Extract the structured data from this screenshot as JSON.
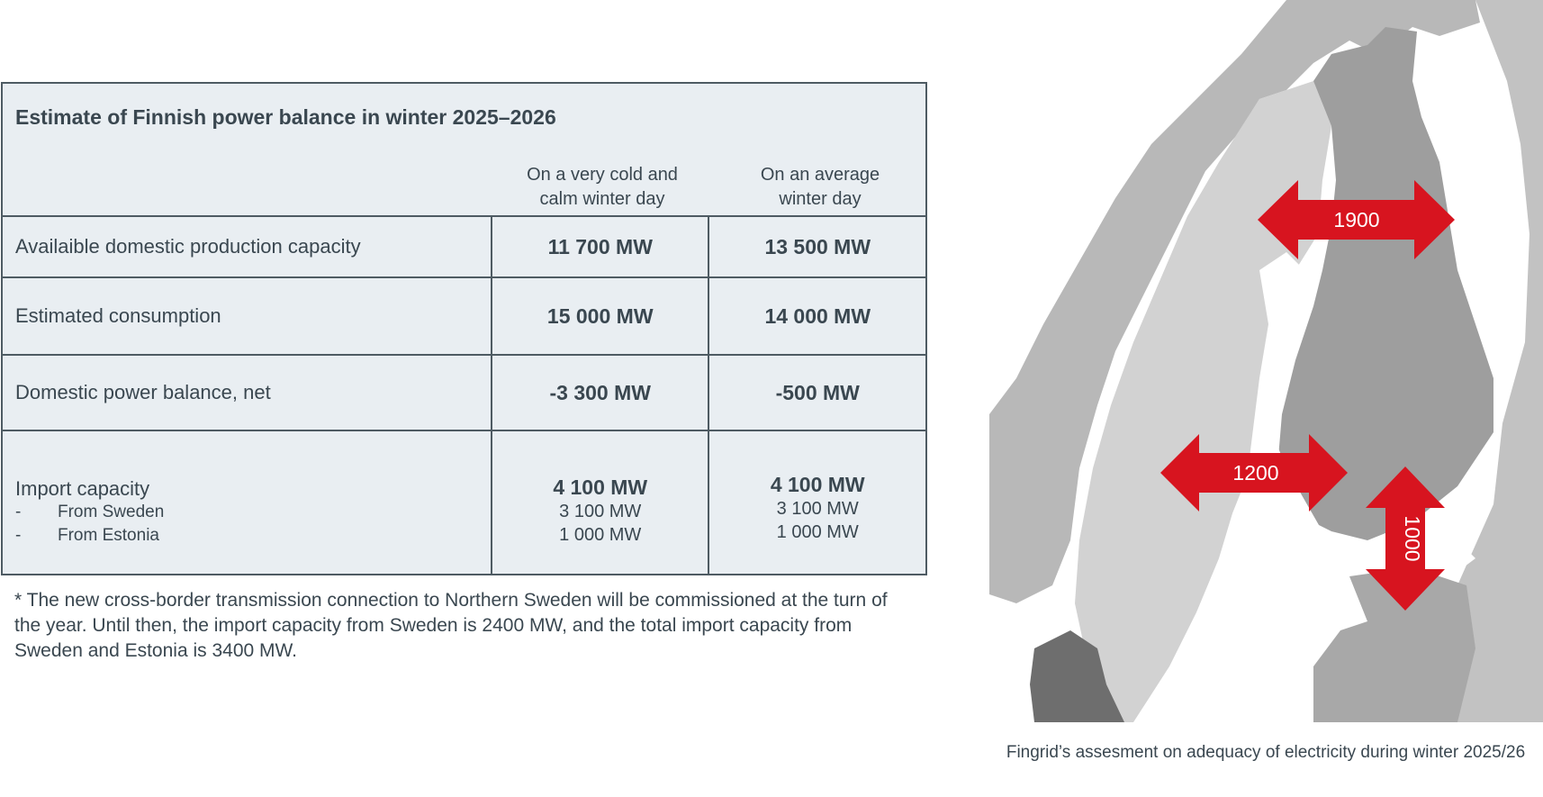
{
  "table": {
    "title": "Estimate of Finnish power balance in winter 2025–2026",
    "columns": {
      "cold": [
        "On a very cold and",
        "calm winter day"
      ],
      "average": [
        "On an average",
        "winter day"
      ]
    },
    "rows": [
      {
        "label": "Availaible domestic production capacity",
        "cold": "11 700 MW",
        "average": "13 500 MW"
      },
      {
        "label": "Estimated consumption",
        "cold": "15 000 MW",
        "average": "14 000 MW"
      },
      {
        "label": "Domestic power balance, net",
        "cold": "-3 300 MW",
        "average": "-500 MW"
      }
    ],
    "import": {
      "label": "Import capacity",
      "sub_labels": [
        {
          "dash": "-",
          "text": "From Sweden"
        },
        {
          "dash": "-",
          "text": "From Estonia"
        }
      ],
      "cold": {
        "total": "4 100 MW",
        "sweden": "3 100 MW",
        "estonia": "1 000 MW"
      },
      "average": {
        "total": "4 100 MW",
        "sweden": "3 100 MW",
        "estonia": "1 000 MW"
      }
    }
  },
  "footnote": "* The new cross-border transmission connection to Northern Sweden will be commissioned at the turn of the year. Until then, the import capacity from Sweden is 2400 MW, and the total import capacity from Sweden and Estonia is 3400 MW.",
  "map": {
    "arrows": [
      {
        "label": "1900"
      },
      {
        "label": "1200"
      },
      {
        "label": "1000"
      }
    ],
    "arrow_color": "#d7141f"
  },
  "caption": "Fingrid’s assesment on adequacy of electricity during winter 2025/26"
}
